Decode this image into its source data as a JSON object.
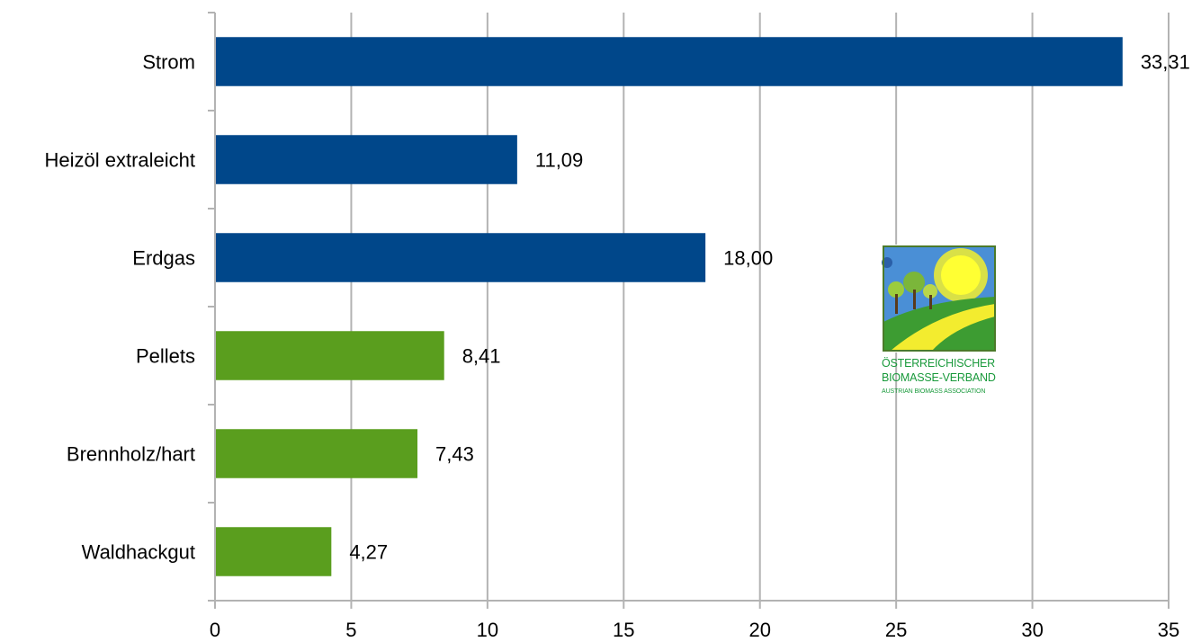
{
  "chart_data": {
    "type": "bar",
    "orientation": "horizontal",
    "categories": [
      "Strom",
      "Heizöl extraleicht",
      "Erdgas",
      "Pellets",
      "Brennholz/hart",
      "Waldhackgut"
    ],
    "values": [
      33.31,
      11.09,
      18.0,
      8.41,
      7.43,
      4.27
    ],
    "value_labels": [
      "33,31",
      "11,09",
      "18,00",
      "8,41",
      "7,43",
      "4,27"
    ],
    "bar_colors": [
      "#00478a",
      "#00478a",
      "#00478a",
      "#5a9e1e",
      "#5a9e1e",
      "#5a9e1e"
    ],
    "x_ticks": [
      "0",
      "5",
      "10",
      "15",
      "20",
      "25",
      "30",
      "35"
    ],
    "xlim": [
      0,
      35
    ],
    "grid": true,
    "title": "",
    "xlabel": "",
    "ylabel": ""
  },
  "logo": {
    "line1": "ÖSTERREICHISCHER",
    "line2": "BIOMASSE-VERBAND",
    "line3": "AUSTRIAN BIOMASS ASSOCIATION"
  },
  "colors": {
    "fossil": "#00478a",
    "biomass": "#5a9e1e",
    "grid": "#b3b3b3",
    "logo_text": "#1a9a3c"
  }
}
